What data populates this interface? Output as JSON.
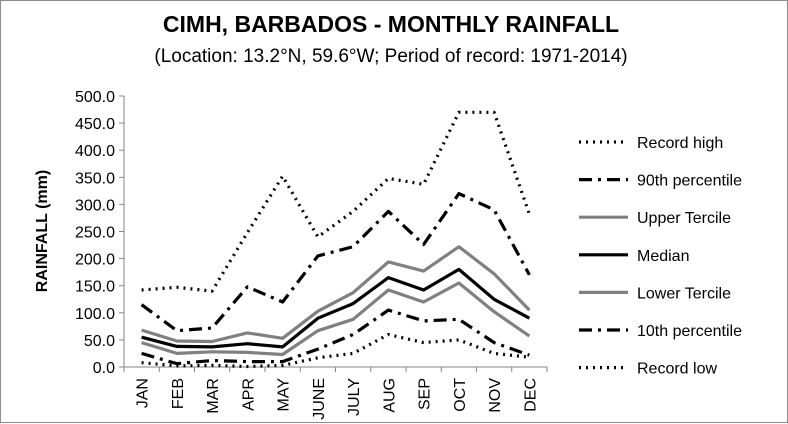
{
  "chart_data": {
    "type": "line",
    "title": "CIMH, BARBADOS - MONTHLY RAINFALL",
    "subtitle": "(Location: 13.2°N, 59.6°W; Period of record: 1971-2014)",
    "xlabel": "",
    "ylabel": "RAINFALL (mm)",
    "ylim": [
      0,
      500
    ],
    "ytick_step": 50,
    "ytick_labels": [
      "0.0",
      "50.0",
      "100.0",
      "150.0",
      "200.0",
      "250.0",
      "300.0",
      "350.0",
      "400.0",
      "450.0",
      "500.0"
    ],
    "categories": [
      "JAN",
      "FEB",
      "MAR",
      "APR",
      "MAY",
      "JUNE",
      "JULY",
      "AUG",
      "SEP",
      "OCT",
      "NOV",
      "DEC"
    ],
    "grid": false,
    "legend_position": "right",
    "series": [
      {
        "name": "Record high",
        "style": "dotted",
        "color": "#000000",
        "values": [
          142,
          147,
          140,
          248,
          352,
          240,
          287,
          348,
          337,
          470,
          470,
          282
        ]
      },
      {
        "name": "90th percentile",
        "style": "dashdot",
        "color": "#000000",
        "values": [
          115,
          67,
          72,
          148,
          120,
          205,
          222,
          287,
          226,
          320,
          290,
          170
        ]
      },
      {
        "name": "Upper Tercile",
        "style": "solid",
        "color": "#808080",
        "values": [
          68,
          48,
          47,
          63,
          53,
          103,
          137,
          194,
          177,
          222,
          172,
          105
        ]
      },
      {
        "name": "Median",
        "style": "solid",
        "color": "#000000",
        "values": [
          55,
          38,
          37,
          43,
          37,
          90,
          117,
          165,
          142,
          180,
          125,
          90
        ]
      },
      {
        "name": "Lower Tercile",
        "style": "solid",
        "color": "#808080",
        "values": [
          45,
          25,
          28,
          27,
          23,
          67,
          88,
          142,
          120,
          155,
          102,
          57
        ]
      },
      {
        "name": "10th percentile",
        "style": "dashdot",
        "color": "#000000",
        "values": [
          25,
          6,
          12,
          10,
          10,
          33,
          60,
          105,
          85,
          88,
          45,
          22
        ]
      },
      {
        "name": "Record low",
        "style": "dotted",
        "color": "#000000",
        "values": [
          8,
          2,
          3,
          1,
          3,
          17,
          25,
          60,
          45,
          50,
          25,
          18
        ]
      }
    ]
  }
}
